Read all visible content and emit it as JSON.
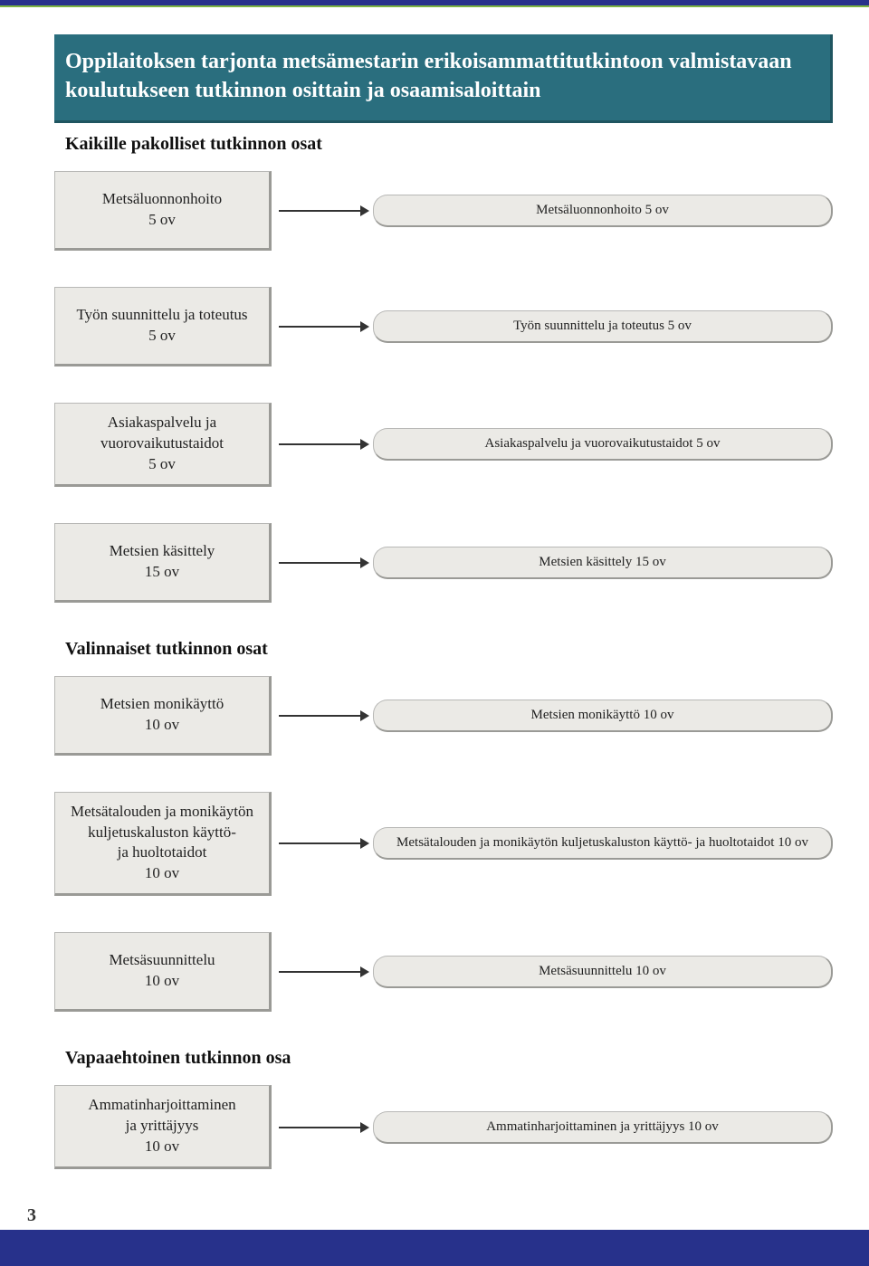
{
  "colors": {
    "top_bar": "#27318b",
    "top_accent": "#7cb342",
    "banner_bg": "#2a6e7e",
    "banner_text": "#ffffff",
    "box_bg": "#ebeae6",
    "box_border": "#b8b8b6",
    "box_shadow": "#9a9a96",
    "arrow": "#333333",
    "bottom_bar": "#27318b"
  },
  "title": "Oppilaitoksen tarjonta metsämestarin erikoisammattitutkintoon valmistavaan koulutukseen tutkinnon osittain ja osaamisaloittain",
  "page_number": "3",
  "sections": [
    {
      "heading": "Kaikille pakolliset tutkinnon osat",
      "rows": [
        {
          "left_lines": [
            "Metsäluonnonhoito",
            "5 ov"
          ],
          "right": "Metsäluonnonhoito 5 ov"
        },
        {
          "left_lines": [
            "Työn suunnittelu ja toteutus",
            "5 ov"
          ],
          "right": "Työn suunnittelu ja toteutus 5 ov"
        },
        {
          "left_lines": [
            "Asiakaspalvelu ja",
            "vuorovaikutustaidot",
            "5 ov"
          ],
          "right": "Asiakaspalvelu ja vuorovaikutustaidot 5 ov"
        },
        {
          "left_lines": [
            "Metsien käsittely",
            "15 ov"
          ],
          "right": "Metsien käsittely 15 ov"
        }
      ]
    },
    {
      "heading": "Valinnaiset tutkinnon osat",
      "rows": [
        {
          "left_lines": [
            "Metsien monikäyttö",
            "10 ov"
          ],
          "right": "Metsien monikäyttö 10 ov"
        },
        {
          "left_lines": [
            "Metsätalouden ja monikäytön",
            "kuljetuskaluston käyttö-",
            "ja huoltotaidot",
            "10 ov"
          ],
          "right": "Metsätalouden ja monikäytön kuljetuskaluston käyttö- ja huoltotaidot 10 ov"
        },
        {
          "left_lines": [
            "Metsäsuunnittelu",
            "10 ov"
          ],
          "right": "Metsäsuunnittelu 10 ov"
        }
      ]
    },
    {
      "heading": "Vapaaehtoinen tutkinnon osa",
      "rows": [
        {
          "left_lines": [
            "Ammatinharjoittaminen",
            "ja yrittäjyys",
            "10 ov"
          ],
          "right": "Ammatinharjoittaminen ja yrittäjyys 10 ov"
        }
      ]
    }
  ]
}
